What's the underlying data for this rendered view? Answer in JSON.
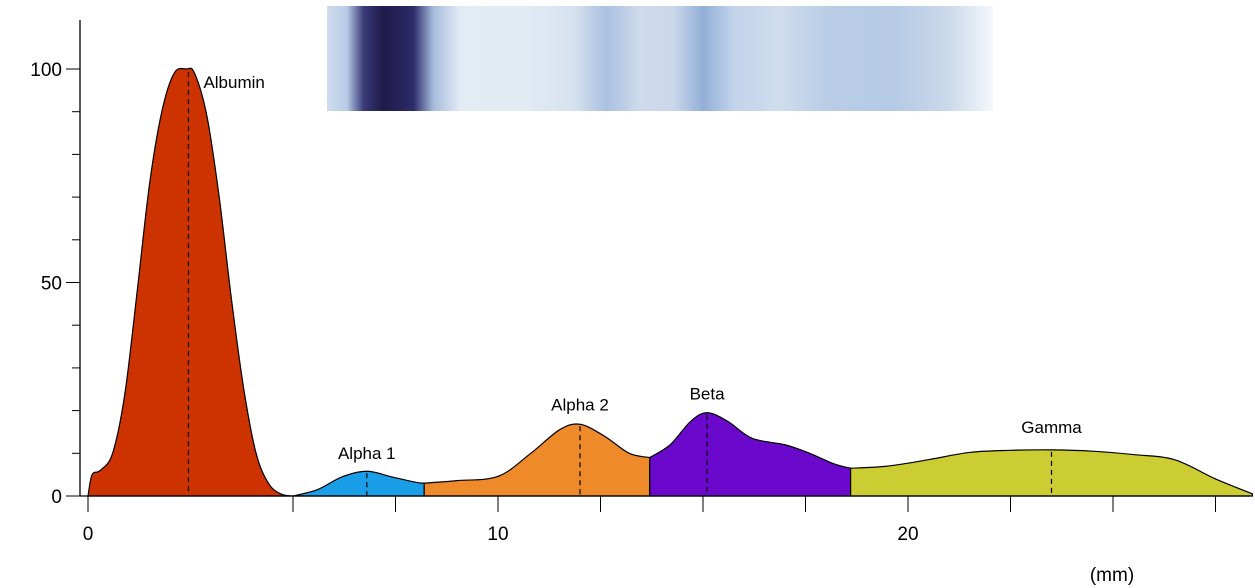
{
  "chart_data": {
    "type": "area",
    "title": "",
    "xlabel": "(mm)",
    "ylabel": "",
    "xlim": [
      0,
      28.5
    ],
    "ylim": [
      0,
      110
    ],
    "x_ticks_labeled": [
      0,
      10,
      20
    ],
    "x_ticks_minor": [
      5,
      7.5,
      12.5,
      15,
      17.5,
      22.5,
      25,
      27.5
    ],
    "y_ticks_labeled": [
      0,
      50,
      100
    ],
    "y_ticks_minor": [
      10,
      20,
      30,
      40,
      60,
      70,
      80,
      90
    ],
    "x_tick_labels": [
      "0",
      "10",
      "20"
    ],
    "y_tick_labels": [
      "0",
      "50",
      "100"
    ],
    "grid": false,
    "fractions": [
      {
        "name": "Albumin",
        "color": "#cc3300",
        "peak_x": 2.45,
        "x": [
          0,
          0.1,
          0.3,
          0.6,
          0.9,
          1.2,
          1.5,
          1.8,
          2.1,
          2.4,
          2.6,
          2.9,
          3.2,
          3.5,
          3.8,
          4.1,
          4.4,
          4.7,
          5.0
        ],
        "y": [
          0,
          5,
          6,
          10,
          24,
          48,
          73,
          90,
          99,
          100,
          99,
          89,
          70,
          46,
          25,
          10,
          3,
          0.5,
          0
        ]
      },
      {
        "name": "Alpha 1",
        "color": "#1a9ee8",
        "peak_x": 6.8,
        "x": [
          5.0,
          5.6,
          6.2,
          6.8,
          7.4,
          8.0,
          8.2
        ],
        "y": [
          0,
          1.5,
          4.5,
          5.8,
          4.5,
          3.2,
          3
        ]
      },
      {
        "name": "Alpha 2",
        "color": "#ee8a29",
        "peak_x": 12.0,
        "x": [
          8.2,
          9.0,
          10.0,
          10.8,
          11.5,
          12.0,
          12.6,
          13.2,
          13.7
        ],
        "y": [
          3,
          3.6,
          4.6,
          10,
          15.5,
          16.8,
          14,
          10,
          9
        ]
      },
      {
        "name": "Beta",
        "color": "#6a08cc",
        "peak_x": 15.1,
        "x": [
          13.7,
          14.2,
          14.7,
          15.1,
          15.6,
          16.2,
          17.0,
          17.6,
          18.2,
          18.6
        ],
        "y": [
          9,
          12,
          17.5,
          19.5,
          17.5,
          13.5,
          12,
          10,
          7.5,
          6.5
        ]
      },
      {
        "name": "Gamma",
        "color": "#cccc33",
        "peak_x": 23.5,
        "x": [
          18.6,
          19.5,
          20.5,
          21.5,
          22.5,
          23.5,
          24.5,
          25.5,
          26.5,
          27.5,
          28.4
        ],
        "y": [
          6.5,
          7,
          8.5,
          10.2,
          10.7,
          10.8,
          10.5,
          9.7,
          8.5,
          4,
          0.5
        ]
      }
    ]
  },
  "gel_strip": {
    "description_colors": [
      "#2a2255",
      "#c5d8ec",
      "#a9c3e2",
      "#eef3f9"
    ]
  }
}
